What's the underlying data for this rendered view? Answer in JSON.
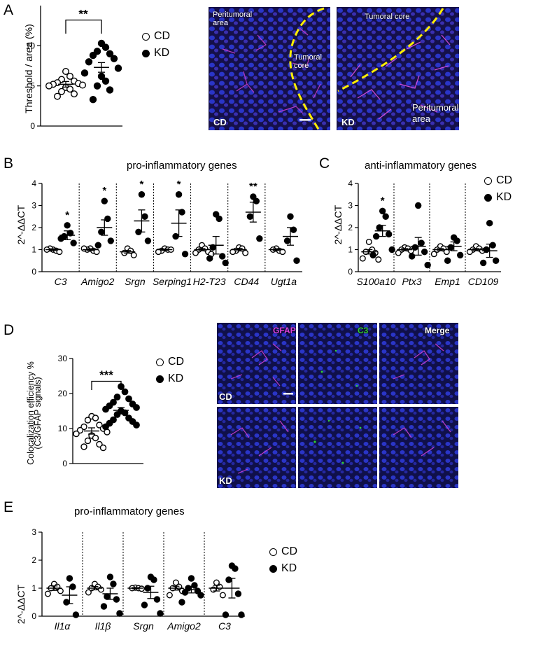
{
  "panels": {
    "A": "A",
    "B": "B",
    "C": "C",
    "D": "D",
    "E": "E"
  },
  "legend": {
    "cd": "CD",
    "kd": "KD"
  },
  "titles": {
    "B": "pro-inflammatory genes",
    "C": "anti-inflammatory genes",
    "E": "pro-inflammatory genes"
  },
  "images": {
    "A_left": {
      "labels": [
        "Peritumoral area",
        "Tumoral core"
      ],
      "condition": "CD"
    },
    "A_right": {
      "labels": [
        "Tumoral core",
        "Peritumoral area"
      ],
      "condition": "KD"
    },
    "D_channels": [
      "GFAP",
      "C3",
      "Merge"
    ],
    "D_rows": [
      "CD",
      "KD"
    ],
    "colors": {
      "gfap": "#e040e0",
      "c3": "#30d030",
      "dapi": "#2a35c8",
      "trace": "#ffee00"
    }
  },
  "chart_data": [
    {
      "id": "A",
      "type": "scatter",
      "ylabel": "Threshold / area (%)",
      "ylim": [
        0,
        15
      ],
      "yticks": [
        0,
        5,
        10
      ],
      "significance": "**",
      "groups": [
        {
          "name": "CD",
          "mean": 5.2,
          "sem": 0.35,
          "values": [
            6.8,
            6.2,
            5.8,
            5.6,
            5.4,
            5.3,
            5.2,
            5.1,
            5.0,
            4.8,
            4.6,
            4.3,
            4.0,
            3.7
          ]
        },
        {
          "name": "KD",
          "mean": 7.3,
          "sem": 0.6,
          "values": [
            10.3,
            9.8,
            9.3,
            9.0,
            8.8,
            8.4,
            8.0,
            7.2,
            6.6,
            6.2,
            5.6,
            5.0,
            4.5,
            3.3
          ]
        }
      ]
    },
    {
      "id": "B",
      "type": "scatter",
      "ylabel": "2^-ΔΔCT",
      "ylim": [
        0,
        4
      ],
      "yticks": [
        0,
        1,
        2,
        3,
        4
      ],
      "genes": [
        {
          "name": "C3",
          "sig": "*",
          "cd": {
            "mean": 1.0,
            "sem": 0.04,
            "values": [
              1.0,
              0.95,
              1.05,
              0.9,
              1.0
            ]
          },
          "kd": {
            "mean": 1.65,
            "sem": 0.2,
            "values": [
              2.1,
              1.75,
              1.6,
              1.3,
              1.5
            ]
          }
        },
        {
          "name": "Amigo2",
          "sig": "*",
          "cd": {
            "mean": 1.0,
            "sem": 0.04,
            "values": [
              1.05,
              0.95,
              1.0,
              0.9,
              1.05
            ]
          },
          "kd": {
            "mean": 2.0,
            "sem": 0.35,
            "values": [
              3.2,
              2.4,
              1.8,
              1.4,
              1.2
            ]
          }
        },
        {
          "name": "Srgn",
          "sig": "*",
          "cd": {
            "mean": 0.9,
            "sem": 0.06,
            "values": [
              1.05,
              0.95,
              0.85,
              0.75
            ]
          },
          "kd": {
            "mean": 2.3,
            "sem": 0.5,
            "values": [
              3.5,
              2.5,
              1.8,
              1.4
            ]
          }
        },
        {
          "name": "Serping1",
          "sig": "*",
          "cd": {
            "mean": 1.0,
            "sem": 0.03,
            "values": [
              1.05,
              1.0,
              0.95,
              1.0,
              0.9
            ]
          },
          "kd": {
            "mean": 2.2,
            "sem": 0.6,
            "values": [
              3.5,
              2.7,
              1.6,
              0.8
            ]
          }
        },
        {
          "name": "H2-T23",
          "sig": "",
          "cd": {
            "mean": 1.0,
            "sem": 0.05,
            "values": [
              1.2,
              1.05,
              1.0,
              0.9,
              0.85,
              0.8
            ]
          },
          "kd": {
            "mean": 1.2,
            "sem": 0.4,
            "values": [
              2.6,
              2.4,
              1.1,
              0.7,
              0.6,
              0.4
            ]
          }
        },
        {
          "name": "CD44",
          "sig": "**",
          "cd": {
            "mean": 1.0,
            "sem": 0.06,
            "values": [
              1.1,
              1.05,
              0.95,
              0.85,
              0.9
            ]
          },
          "kd": {
            "mean": 2.7,
            "sem": 0.45,
            "values": [
              3.4,
              3.2,
              2.5,
              1.5
            ]
          }
        },
        {
          "name": "Ugt1a",
          "sig": "",
          "cd": {
            "mean": 1.0,
            "sem": 0.04,
            "values": [
              1.05,
              0.95,
              1.0,
              0.9
            ]
          },
          "kd": {
            "mean": 1.6,
            "sem": 0.4,
            "values": [
              2.5,
              1.9,
              1.4,
              0.5
            ]
          }
        }
      ]
    },
    {
      "id": "C",
      "type": "scatter",
      "ylabel": "2^-ΔΔCT",
      "ylim": [
        0,
        4
      ],
      "yticks": [
        0,
        1,
        2,
        3,
        4
      ],
      "genes": [
        {
          "name": "S100a10",
          "sig": "*",
          "cd": {
            "mean": 0.9,
            "sem": 0.1,
            "values": [
              1.35,
              1.0,
              0.9,
              0.85,
              0.6,
              0.55
            ]
          },
          "kd": {
            "mean": 1.85,
            "sem": 0.25,
            "values": [
              2.75,
              2.5,
              2.0,
              1.7,
              1.6,
              1.0,
              0.75
            ]
          }
        },
        {
          "name": "Ptx3",
          "sig": "",
          "cd": {
            "mean": 1.0,
            "sem": 0.05,
            "values": [
              1.1,
              1.05,
              1.0,
              0.95,
              0.85
            ]
          },
          "kd": {
            "mean": 1.15,
            "sem": 0.4,
            "values": [
              3.0,
              1.3,
              1.1,
              0.9,
              0.7,
              0.3
            ]
          }
        },
        {
          "name": "Emp1",
          "sig": "",
          "cd": {
            "mean": 1.0,
            "sem": 0.05,
            "values": [
              1.15,
              1.05,
              1.0,
              0.9,
              0.8
            ]
          },
          "kd": {
            "mean": 1.15,
            "sem": 0.2,
            "values": [
              1.55,
              1.4,
              1.1,
              0.75,
              0.5
            ]
          }
        },
        {
          "name": "CD109",
          "sig": "",
          "cd": {
            "mean": 1.0,
            "sem": 0.05,
            "values": [
              1.15,
              1.05,
              1.0,
              0.95,
              0.9
            ]
          },
          "kd": {
            "mean": 0.95,
            "sem": 0.3,
            "values": [
              2.2,
              1.2,
              1.0,
              0.5,
              0.4
            ]
          }
        }
      ]
    },
    {
      "id": "D",
      "type": "scatter",
      "ylabel": "Colocalization efficiency %",
      "ylabel2": "(C3/GFAP signals)",
      "ylim": [
        0,
        30
      ],
      "yticks": [
        0,
        10,
        20,
        30
      ],
      "significance": "***",
      "groups": [
        {
          "name": "CD",
          "mean": 9.3,
          "sem": 0.9,
          "values": [
            13.5,
            13.0,
            12.4,
            11.0,
            10.5,
            10.0,
            9.5,
            9.0,
            8.5,
            8.0,
            7.3,
            6.5,
            5.5,
            4.8,
            4.5
          ]
        },
        {
          "name": "KD",
          "mean": 15.2,
          "sem": 0.8,
          "values": [
            22.0,
            20.5,
            19.0,
            18.5,
            17.5,
            17.0,
            16.5,
            16.0,
            15.5,
            15.0,
            14.5,
            14.0,
            13.0,
            12.5,
            12.0,
            11.5,
            11.0,
            10.5
          ]
        }
      ]
    },
    {
      "id": "E",
      "type": "scatter",
      "ylabel": "2^-ΔΔCT",
      "ylim": [
        0,
        3
      ],
      "yticks": [
        0,
        1,
        2,
        3
      ],
      "genes": [
        {
          "name": "Il1α",
          "sig": "",
          "cd": {
            "mean": 1.0,
            "sem": 0.08,
            "values": [
              1.15,
              1.05,
              1.0,
              0.9,
              0.8
            ]
          },
          "kd": {
            "mean": 0.75,
            "sem": 0.3,
            "values": [
              1.35,
              1.05,
              0.5,
              0.05
            ]
          }
        },
        {
          "name": "Il1β",
          "sig": "",
          "cd": {
            "mean": 1.0,
            "sem": 0.06,
            "values": [
              1.15,
              1.05,
              1.0,
              0.95,
              0.85
            ]
          },
          "kd": {
            "mean": 0.8,
            "sem": 0.2,
            "values": [
              1.4,
              1.15,
              0.7,
              0.6,
              0.35,
              0.1
            ]
          }
        },
        {
          "name": "Srgn",
          "sig": "",
          "cd": {
            "mean": 1.0,
            "sem": 0.02,
            "values": [
              1.02,
              1.0,
              1.0,
              0.98
            ]
          },
          "kd": {
            "mean": 0.85,
            "sem": 0.22,
            "values": [
              1.4,
              1.3,
              1.0,
              0.6,
              0.4,
              0.1
            ]
          }
        },
        {
          "name": "Amigo2",
          "sig": "",
          "cd": {
            "mean": 1.0,
            "sem": 0.07,
            "values": [
              1.2,
              1.05,
              1.0,
              0.9,
              0.75
            ]
          },
          "kd": {
            "mean": 0.95,
            "sem": 0.12,
            "values": [
              1.35,
              1.1,
              1.0,
              0.9,
              0.85,
              0.75,
              0.5
            ]
          }
        },
        {
          "name": "C3",
          "sig": "",
          "cd": {
            "mean": 1.0,
            "sem": 0.1,
            "values": [
              1.2,
              1.05,
              0.95,
              0.75
            ]
          },
          "kd": {
            "mean": 1.0,
            "sem": 0.35,
            "values": [
              1.8,
              1.7,
              1.3,
              0.8,
              0.05,
              0.05
            ]
          }
        }
      ]
    }
  ]
}
